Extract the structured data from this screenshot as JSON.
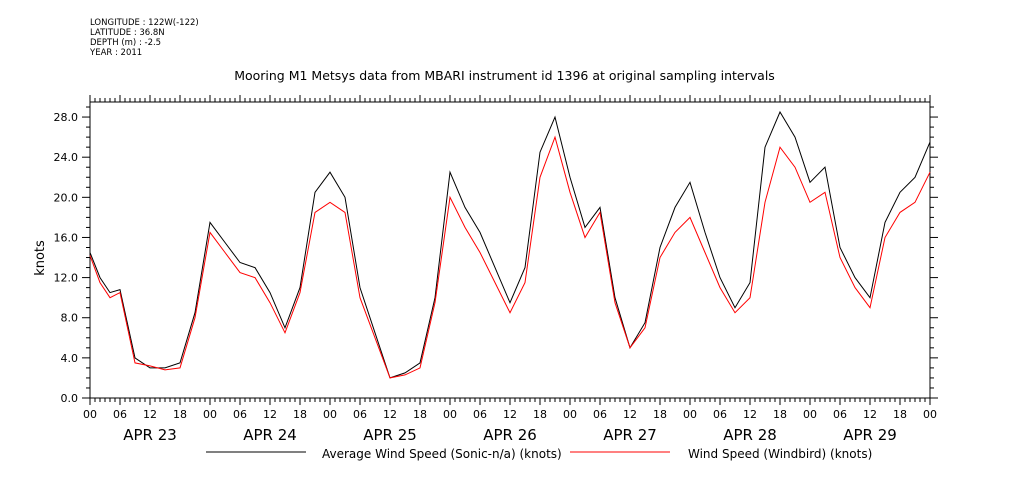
{
  "header": {
    "lines": [
      "LONGITUDE : 122W(-122)",
      "LATITUDE : 36.8N",
      "DEPTH (m) : -2.5",
      "YEAR : 2011"
    ]
  },
  "chart_data": {
    "type": "line",
    "title": "Mooring M1 Metsys data from MBARI instrument id 1396 at original sampling intervals",
    "ylabel": "knots",
    "xlabel": "",
    "ylim": [
      0,
      29.5
    ],
    "y_ticks": [
      "0.0",
      "4.0",
      "8.0",
      "12.0",
      "16.0",
      "20.0",
      "24.0",
      "28.0"
    ],
    "y_tick_values": [
      0,
      4,
      8,
      12,
      16,
      20,
      24,
      28
    ],
    "x_unit": "hours since APR 23 00:00",
    "xlim": [
      0,
      168
    ],
    "x_hour_ticks": [
      "00",
      "06",
      "12",
      "18"
    ],
    "x_day_labels": [
      "APR 23",
      "APR 24",
      "APR 25",
      "APR 26",
      "APR 27",
      "APR 28",
      "APR 29"
    ],
    "grid": false,
    "legend_position": "bottom",
    "colors": {
      "sonic": "#000000",
      "windbird": "#ff0000"
    },
    "series": [
      {
        "name": "Average Wind Speed (Sonic-n/a) (knots)",
        "color": "#000000",
        "x": [
          0,
          2,
          4,
          6,
          9,
          12,
          15,
          18,
          21,
          24,
          27,
          30,
          33,
          36,
          39,
          42,
          45,
          48,
          51,
          54,
          57,
          60,
          63,
          66,
          69,
          72,
          75,
          78,
          81,
          84,
          87,
          90,
          93,
          96,
          99,
          102,
          105,
          108,
          111,
          114,
          117,
          120,
          123,
          126,
          129,
          132,
          135,
          138,
          141,
          144,
          147,
          150,
          153,
          156,
          159,
          162,
          165,
          168
        ],
        "values": [
          14.5,
          12.0,
          10.5,
          10.8,
          4.0,
          3.0,
          3.0,
          3.5,
          8.5,
          17.5,
          15.5,
          13.5,
          13.0,
          10.5,
          7.0,
          11.0,
          20.5,
          22.5,
          20.0,
          11.0,
          6.5,
          2.0,
          2.5,
          3.5,
          10.0,
          22.5,
          19.0,
          16.5,
          13.0,
          9.5,
          13.0,
          24.5,
          28.0,
          22.0,
          17.0,
          19.0,
          10.0,
          5.0,
          7.5,
          15.0,
          19.0,
          21.5,
          16.5,
          12.0,
          9.0,
          11.5,
          25.0,
          28.5,
          26.0,
          21.5,
          23.0,
          15.0,
          12.0,
          10.0,
          17.5,
          20.5,
          22.0,
          25.5
        ]
      },
      {
        "name": "Wind Speed (Windbird) (knots)",
        "color": "#ff0000",
        "x": [
          0,
          2,
          4,
          6,
          9,
          12,
          15,
          18,
          21,
          24,
          27,
          30,
          33,
          36,
          39,
          42,
          45,
          48,
          51,
          54,
          57,
          60,
          63,
          66,
          69,
          72,
          75,
          78,
          81,
          84,
          87,
          90,
          93,
          96,
          99,
          102,
          105,
          108,
          111,
          114,
          117,
          120,
          123,
          126,
          129,
          132,
          135,
          138,
          141,
          144,
          147,
          150,
          153,
          156,
          159,
          162,
          165,
          168
        ],
        "values": [
          14.2,
          11.5,
          10.0,
          10.5,
          3.5,
          3.2,
          2.8,
          3.0,
          8.0,
          16.5,
          14.5,
          12.5,
          12.0,
          9.5,
          6.5,
          10.5,
          18.5,
          19.5,
          18.5,
          10.0,
          6.0,
          2.0,
          2.3,
          3.0,
          9.5,
          20.0,
          17.0,
          14.5,
          11.5,
          8.5,
          11.5,
          22.0,
          26.0,
          20.5,
          16.0,
          18.5,
          9.5,
          5.0,
          7.0,
          14.0,
          16.5,
          18.0,
          14.5,
          11.0,
          8.5,
          10.0,
          19.5,
          25.0,
          23.0,
          19.5,
          20.5,
          14.0,
          11.0,
          9.0,
          16.0,
          18.5,
          19.5,
          22.5
        ]
      }
    ]
  }
}
